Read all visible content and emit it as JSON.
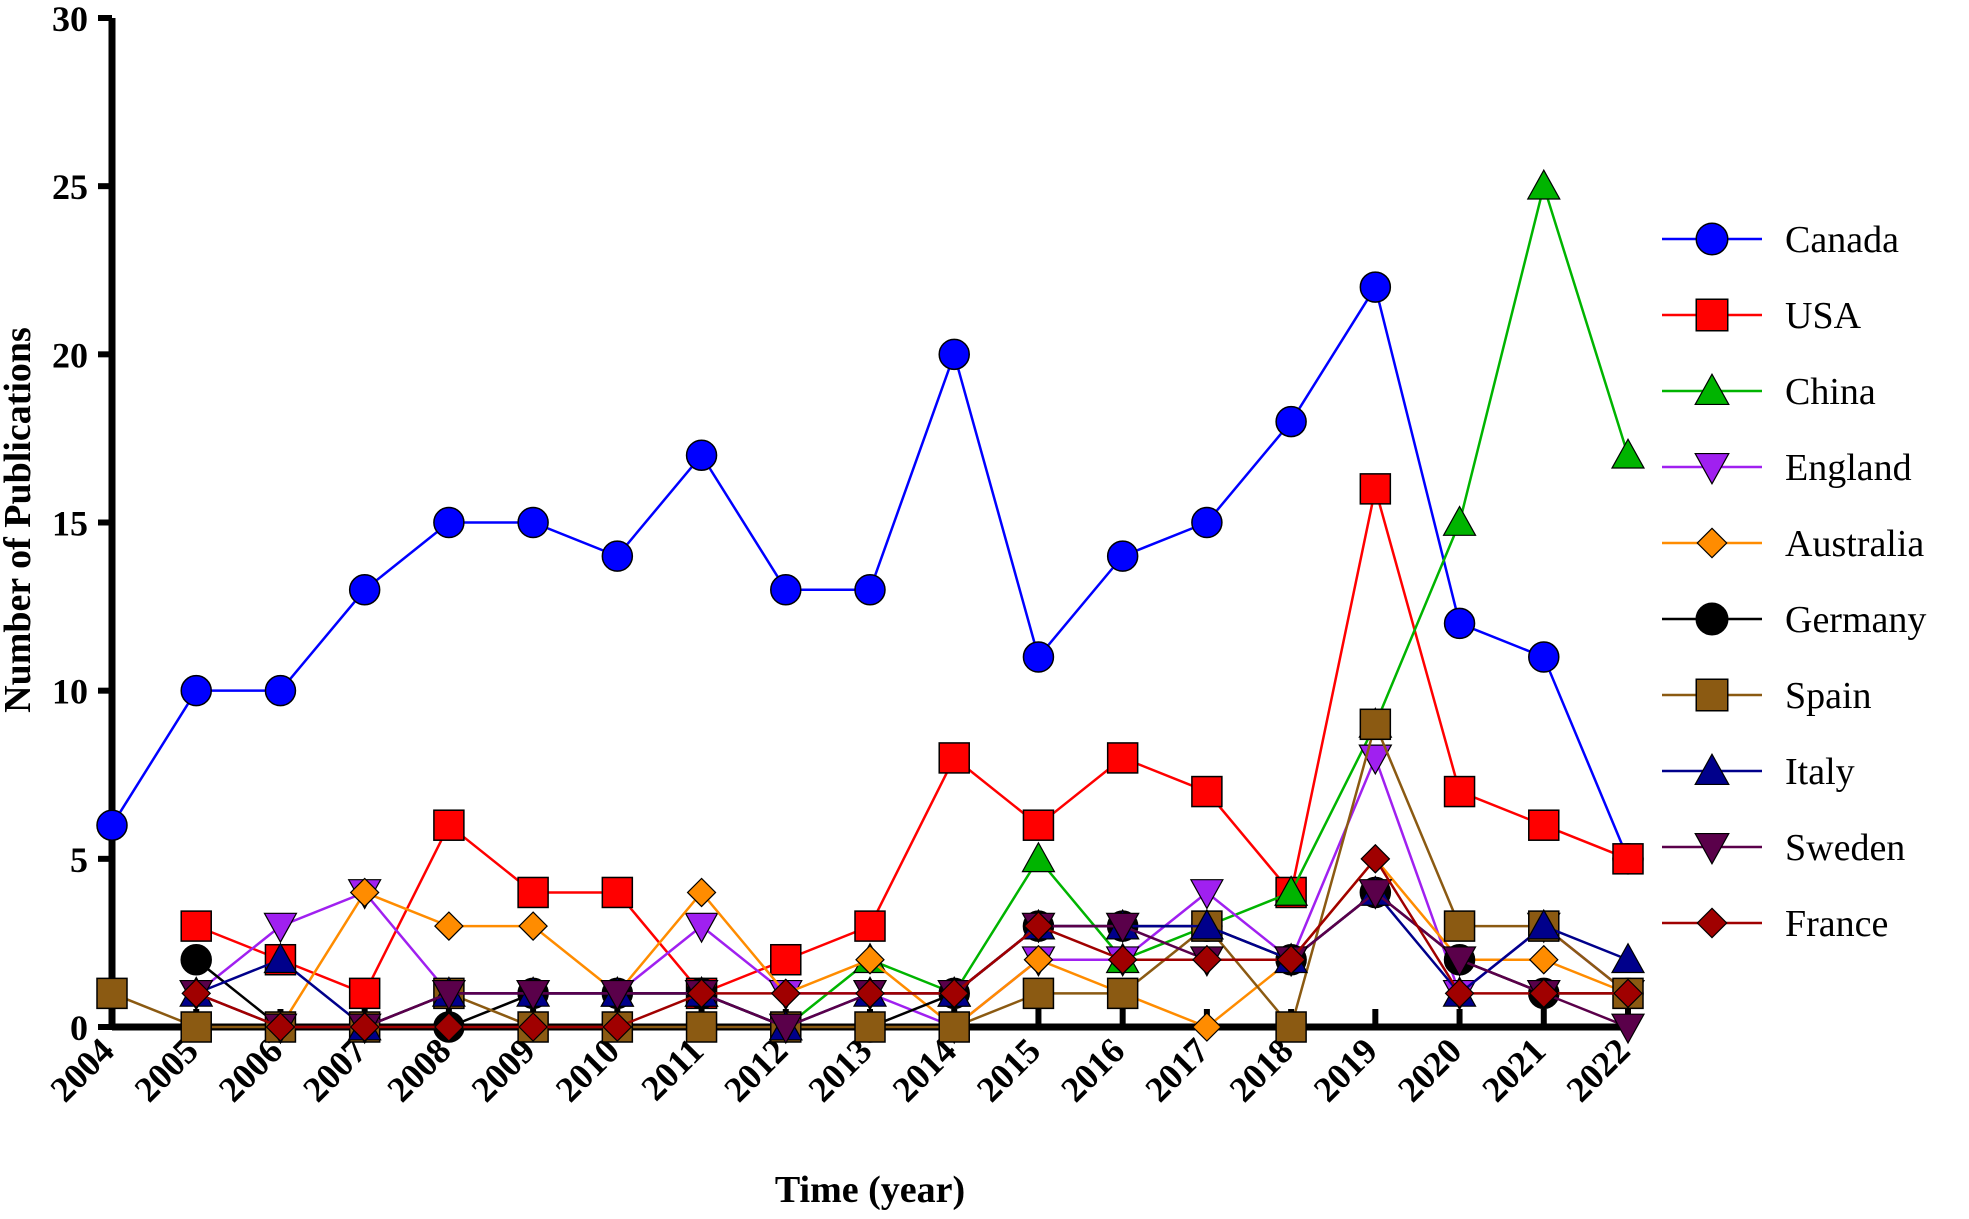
{
  "chart_data": {
    "type": "line",
    "title": "",
    "xlabel": "Time (year)",
    "ylabel": "Number of Publications",
    "ylim": [
      0,
      30
    ],
    "yticks": [
      0,
      5,
      10,
      15,
      20,
      25,
      30
    ],
    "x": [
      "2004",
      "2005",
      "2006",
      "2007",
      "2008",
      "2009",
      "2010",
      "2011",
      "2012",
      "2013",
      "2014",
      "2015",
      "2016",
      "2017",
      "2018",
      "2019",
      "2020",
      "2021",
      "2022"
    ],
    "legend_position": "right",
    "series": [
      {
        "name": "Canada",
        "color": "#0000ff",
        "marker": "circle",
        "values": [
          6,
          10,
          10,
          13,
          15,
          15,
          14,
          17,
          13,
          13,
          20,
          11,
          14,
          15,
          18,
          22,
          12,
          11,
          5
        ]
      },
      {
        "name": "USA",
        "color": "#ff0000",
        "marker": "square",
        "values": [
          null,
          3,
          2,
          1,
          6,
          4,
          4,
          1,
          2,
          3,
          8,
          6,
          8,
          7,
          4,
          16,
          7,
          6,
          5
        ]
      },
      {
        "name": "China",
        "color": "#00b400",
        "marker": "triangle-up",
        "values": [
          null,
          null,
          null,
          null,
          null,
          null,
          1,
          1,
          0,
          2,
          1,
          5,
          2,
          3,
          4,
          9,
          15,
          25,
          17
        ]
      },
      {
        "name": "England",
        "color": "#a020f0",
        "marker": "triangle-down",
        "values": [
          null,
          1,
          3,
          4,
          1,
          1,
          1,
          3,
          1,
          1,
          0,
          2,
          2,
          4,
          2,
          8,
          1,
          3,
          1
        ]
      },
      {
        "name": "Australia",
        "color": "#ff8c00",
        "marker": "diamond",
        "values": [
          null,
          null,
          0,
          4,
          3,
          3,
          1,
          4,
          1,
          2,
          0,
          2,
          1,
          0,
          2,
          5,
          2,
          2,
          1
        ]
      },
      {
        "name": "Germany",
        "color": "#000000",
        "marker": "circle",
        "values": [
          null,
          2,
          0,
          0,
          0,
          1,
          1,
          1,
          0,
          0,
          1,
          3,
          3,
          3,
          2,
          4,
          2,
          1,
          1
        ]
      },
      {
        "name": "Spain",
        "color": "#8b5a12",
        "marker": "square",
        "values": [
          1,
          0,
          0,
          0,
          1,
          0,
          0,
          0,
          0,
          0,
          0,
          1,
          1,
          3,
          0,
          9,
          3,
          3,
          1
        ]
      },
      {
        "name": "Italy",
        "color": "#00008b",
        "marker": "triangle-up",
        "values": [
          null,
          1,
          2,
          0,
          1,
          1,
          1,
          1,
          0,
          1,
          1,
          3,
          3,
          3,
          2,
          4,
          1,
          3,
          2
        ]
      },
      {
        "name": "Sweden",
        "color": "#5a004a",
        "marker": "triangle-down",
        "values": [
          null,
          1,
          0,
          0,
          1,
          1,
          1,
          1,
          0,
          1,
          1,
          3,
          3,
          2,
          2,
          4,
          2,
          1,
          0
        ]
      },
      {
        "name": "France",
        "color": "#a00000",
        "marker": "diamond",
        "values": [
          null,
          1,
          0,
          0,
          0,
          0,
          0,
          1,
          1,
          1,
          1,
          3,
          2,
          2,
          2,
          5,
          1,
          1,
          1
        ]
      }
    ]
  }
}
